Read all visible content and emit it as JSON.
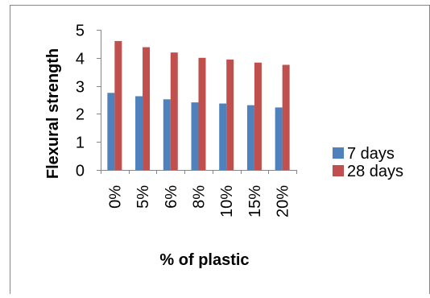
{
  "colors": {
    "series_1": "#4f81bd",
    "series_2": "#c0504d",
    "axis": "#868686",
    "frame": "#868686"
  },
  "chart_data": {
    "type": "bar",
    "categories": [
      "0%",
      "5%",
      "6%",
      "8%",
      "10%",
      "15%",
      "20%"
    ],
    "series": [
      {
        "name": "7 days",
        "values": [
          2.75,
          2.63,
          2.52,
          2.41,
          2.37,
          2.31,
          2.23
        ]
      },
      {
        "name": "28 days",
        "values": [
          4.6,
          4.38,
          4.19,
          4.0,
          3.94,
          3.83,
          3.75
        ]
      }
    ],
    "xlabel": "% of plastic",
    "ylabel": "Flexural  strength",
    "ylim": [
      0,
      5
    ],
    "yticks": [
      "0",
      "1",
      "2",
      "3",
      "4",
      "5"
    ],
    "grid": false,
    "legend_position": "right"
  }
}
